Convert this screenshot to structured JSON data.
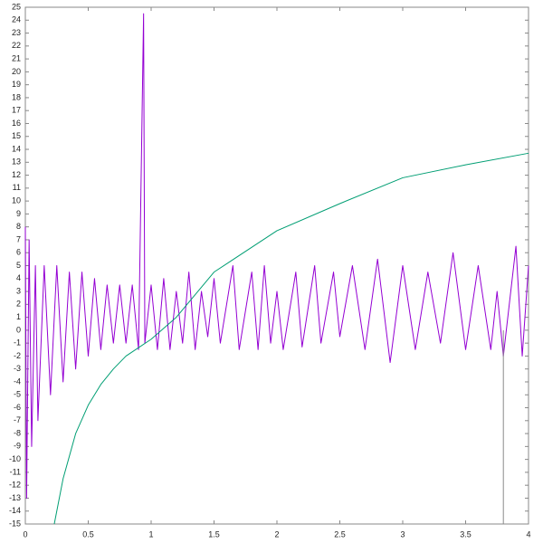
{
  "chart_data": {
    "type": "line",
    "xlim": [
      0,
      4
    ],
    "xticks": [
      0,
      0.5,
      1,
      1.5,
      2,
      2.5,
      3,
      3.5,
      4
    ],
    "ylim": [
      -15,
      25
    ],
    "yticks": [
      -15,
      -14,
      -13,
      -12,
      -11,
      -10,
      -9,
      -8,
      -7,
      -6,
      -5,
      -4,
      -3,
      -2,
      -1,
      0,
      1,
      2,
      3,
      4,
      5,
      6,
      7,
      8,
      9,
      10,
      11,
      12,
      13,
      14,
      15,
      16,
      17,
      18,
      19,
      20,
      21,
      22,
      23,
      24,
      25
    ],
    "grid": false,
    "series": [
      {
        "color": "#9400d3",
        "x": [
          0,
          0.01,
          0.03,
          0.05,
          0.08,
          0.1,
          0.15,
          0.2,
          0.25,
          0.3,
          0.35,
          0.4,
          0.45,
          0.5,
          0.55,
          0.6,
          0.65,
          0.7,
          0.75,
          0.8,
          0.85,
          0.9,
          0.94,
          0.95,
          1.0,
          1.05,
          1.1,
          1.15,
          1.2,
          1.25,
          1.3,
          1.35,
          1.4,
          1.45,
          1.5,
          1.55,
          1.65,
          1.7,
          1.8,
          1.85,
          1.9,
          1.95,
          2.0,
          2.05,
          2.15,
          2.2,
          2.3,
          2.35,
          2.45,
          2.5,
          2.6,
          2.7,
          2.8,
          2.9,
          3.0,
          3.1,
          3.2,
          3.3,
          3.4,
          3.5,
          3.6,
          3.7,
          3.75,
          3.8,
          3.9,
          3.95,
          4.0
        ],
        "values": [
          8,
          -13,
          7,
          -9,
          5,
          -7,
          5,
          -5,
          5,
          -4,
          4.5,
          -3,
          4.5,
          -2,
          4,
          -1.5,
          3.5,
          -1,
          3.5,
          -1,
          3.5,
          -1.5,
          24.5,
          -1,
          3.5,
          -1.5,
          4,
          -1.5,
          3,
          -1,
          4.5,
          -1.5,
          3,
          -0.5,
          4,
          -1,
          5,
          -1.5,
          4.5,
          -1.5,
          5,
          -1,
          3,
          -1.5,
          4.5,
          -1.3,
          5,
          -1,
          4.5,
          -0.5,
          5,
          -1.5,
          5.5,
          -2.5,
          5,
          -1.5,
          4.5,
          -1,
          6,
          -1.5,
          5,
          -1.5,
          3,
          -2,
          6.5,
          -2,
          5
        ]
      },
      {
        "color": "#009e73",
        "x": [
          0.23,
          0.3,
          0.4,
          0.5,
          0.6,
          0.7,
          0.8,
          1,
          1.2,
          1.5,
          2,
          2.5,
          3,
          3.5,
          4
        ],
        "values": [
          -15,
          -11.5,
          -8,
          -5.8,
          -4.2,
          -3,
          -2,
          -0.7,
          1,
          4.5,
          7.7,
          9.8,
          11.8,
          12.8,
          13.7
        ]
      },
      {
        "color": "#8a8a8a",
        "x": [
          3.8,
          3.8
        ],
        "values": [
          0,
          -15
        ]
      }
    ]
  }
}
